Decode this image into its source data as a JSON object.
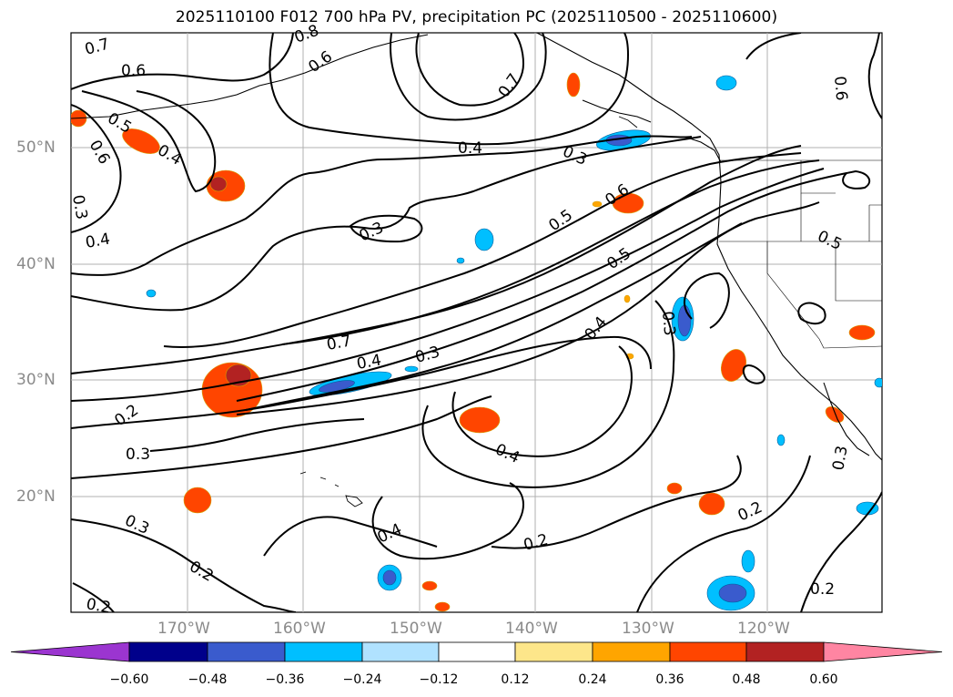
{
  "title": "2025110100 F012 700 hPa PV, precipitation PC (2025110500 - 2025110600)",
  "lat_labels": [
    "50°N",
    "40°N",
    "30°N",
    "20°N"
  ],
  "lon_labels": [
    "170°W",
    "160°W",
    "150°W",
    "140°W",
    "130°W",
    "120°W"
  ],
  "contour_labels": [
    "0.7",
    "0.6",
    "0.5",
    "0.6",
    "0.4",
    "0.3",
    "0.4",
    "0.8",
    "0.7",
    "0.6",
    "0.4",
    "0.3",
    "0.3",
    "0.5",
    "0.6",
    "0.5",
    "0.5",
    "0.4",
    "0.3",
    "0.7",
    "0.4",
    "0.3",
    "0.2",
    "0.3",
    "0.4",
    "0.3",
    "0.2",
    "0.4",
    "0.2",
    "0.2",
    "0.2",
    "0.3",
    "0.2",
    "0.6"
  ],
  "colorbar": {
    "ticks": [
      "−0.60",
      "−0.48",
      "−0.36",
      "−0.24",
      "−0.12",
      "0.12",
      "0.24",
      "0.36",
      "0.48",
      "0.60"
    ],
    "colors": [
      "#9b35d0",
      "#00008b",
      "#3a5bcd",
      "#00bfff",
      "#b0e2ff",
      "#ffffff",
      "#fde68a",
      "#ffa500",
      "#ff4500",
      "#b22222",
      "#ff85a2"
    ]
  }
}
